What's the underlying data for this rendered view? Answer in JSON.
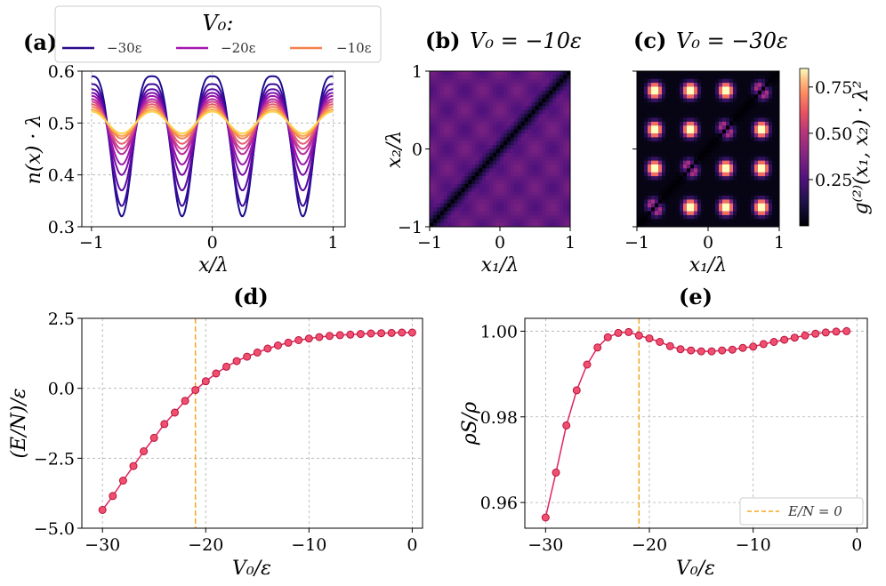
{
  "panels": {
    "a": {
      "label": "(a)",
      "ylabel": "n(x) · λ",
      "xlabel": "x/λ"
    },
    "b": {
      "label": "(b)",
      "title": "V₀ = −10ε",
      "xlabel": "x₁/λ",
      "ylabel": "x₂/λ"
    },
    "c": {
      "label": "(c)",
      "title": "V₀ = −30ε",
      "xlabel": "x₁/λ"
    },
    "d": {
      "label": "(d)",
      "xlabel": "V₀/ε",
      "ylabel": "(E/N)/ε"
    },
    "e": {
      "label": "(e)",
      "xlabel": "V₀/ε",
      "ylabel": "ρS/ρ"
    }
  },
  "legend_a": {
    "title": "V₀:",
    "entries": [
      "−30ε",
      "−20ε",
      "−10ε"
    ]
  },
  "legend_e": {
    "entries": [
      "E/N = 0"
    ]
  },
  "colorbar": {
    "label": "g⁽²⁾(x₁, x₂) · λ²",
    "ticks": [
      "0.25",
      "0.50",
      "0.75"
    ]
  },
  "colors": {
    "series": "#e0245e",
    "marker_fill": "#f0506e",
    "vline": "#f5a623",
    "cmap_low": "#000004",
    "cmap_high": "#fcfdbf"
  },
  "chart_data": [
    {
      "type": "line",
      "id": "a",
      "title": "",
      "xlabel": "x/λ",
      "ylabel": "n(x) · λ",
      "xlim": [
        -1.08,
        1.1
      ],
      "ylim": [
        0.3,
        0.6
      ],
      "xticks": [
        "−1",
        "0",
        "1"
      ],
      "yticks": [
        "0.3",
        "0.4",
        "0.5",
        "0.6"
      ],
      "grid": true,
      "description_series": "density profiles n(x)·λ = 0.5 + A·cos(4πx/λ), one curve per V₀ from −30ε (dark) to −10ε (light)",
      "series": [
        {
          "V0": -30,
          "amplitude": 0.09,
          "min_dip": 0.32,
          "label": "−30ε"
        },
        {
          "V0": -28,
          "amplitude": 0.075,
          "min_dip": 0.34
        },
        {
          "V0": -26,
          "amplitude": 0.065,
          "min_dip": 0.37
        },
        {
          "V0": -24,
          "amplitude": 0.058,
          "min_dip": 0.4
        },
        {
          "V0": -22,
          "amplitude": 0.052,
          "min_dip": 0.42
        },
        {
          "V0": -20,
          "amplitude": 0.046,
          "min_dip": 0.44,
          "label": "−20ε"
        },
        {
          "V0": -18,
          "amplitude": 0.041,
          "min_dip": 0.45
        },
        {
          "V0": -16,
          "amplitude": 0.036,
          "min_dip": 0.46
        },
        {
          "V0": -14,
          "amplitude": 0.031,
          "min_dip": 0.47
        },
        {
          "V0": -12,
          "amplitude": 0.026,
          "min_dip": 0.475
        },
        {
          "V0": -10,
          "amplitude": 0.022,
          "min_dip": 0.48,
          "label": "−10ε"
        }
      ]
    },
    {
      "type": "heatmap",
      "id": "b",
      "title": "V₀ = −10ε",
      "xlabel": "x₁/λ",
      "ylabel": "x₂/λ",
      "xlim": [
        -1,
        1
      ],
      "ylim": [
        -1,
        1
      ],
      "xticks": [
        "−1",
        "0",
        "1"
      ],
      "yticks": [
        "−1",
        "0",
        "1"
      ],
      "value_range": [
        0.0,
        0.85
      ],
      "background_level": 0.3,
      "modulation": 0.05,
      "diagonal_level": 0.0
    },
    {
      "type": "heatmap",
      "id": "c",
      "title": "V₀ = −30ε",
      "xlabel": "x₁/λ",
      "xlim": [
        -1,
        1
      ],
      "ylim": [
        -1,
        1
      ],
      "xticks": [
        "−1",
        "0",
        "1"
      ],
      "value_range": [
        0.0,
        0.85
      ],
      "blob_level": 0.85,
      "background_level": 0.03,
      "diagonal_level": 0.0
    },
    {
      "type": "line",
      "id": "d",
      "title": "",
      "xlabel": "V₀/ε",
      "ylabel": "(E/N)/ε",
      "xlim": [
        -32,
        1
      ],
      "ylim": [
        -5.0,
        2.5
      ],
      "xticks": [
        "−30",
        "−20",
        "−10",
        "0"
      ],
      "yticks": [
        "−5.0",
        "−2.5",
        "0.0",
        "2.5"
      ],
      "grid": true,
      "vline": -21,
      "x": [
        -30,
        -29,
        -28,
        -27,
        -26,
        -25,
        -24,
        -23,
        -22,
        -21,
        -20,
        -19,
        -18,
        -17,
        -16,
        -15,
        -14,
        -13,
        -12,
        -11,
        -10,
        -9,
        -8,
        -7,
        -6,
        -5,
        -4,
        -3,
        -2,
        -1,
        0
      ],
      "y": [
        -4.35,
        -3.85,
        -3.3,
        -2.78,
        -2.25,
        -1.77,
        -1.28,
        -0.87,
        -0.45,
        -0.06,
        0.25,
        0.53,
        0.77,
        0.97,
        1.13,
        1.28,
        1.42,
        1.53,
        1.63,
        1.72,
        1.78,
        1.83,
        1.87,
        1.9,
        1.92,
        1.94,
        1.96,
        1.97,
        1.98,
        1.99,
        1.99
      ]
    },
    {
      "type": "line",
      "id": "e",
      "title": "",
      "xlabel": "V₀/ε",
      "ylabel": "ρS/ρ",
      "xlim": [
        -32,
        1
      ],
      "ylim": [
        0.954,
        1.003
      ],
      "xticks": [
        "−30",
        "−20",
        "−10",
        "0"
      ],
      "yticks": [
        "0.96",
        "0.98",
        "1.00"
      ],
      "grid": true,
      "vline": -21,
      "legend": "E/N = 0",
      "x": [
        -30,
        -29,
        -28,
        -27,
        -26,
        -25,
        -24,
        -23,
        -22,
        -21,
        -20,
        -19,
        -18,
        -17,
        -16,
        -15,
        -14,
        -13,
        -12,
        -11,
        -10,
        -9,
        -8,
        -7,
        -6,
        -5,
        -4,
        -3,
        -2,
        -1
      ],
      "y": [
        0.9565,
        0.967,
        0.978,
        0.9862,
        0.9922,
        0.9962,
        0.9986,
        0.9996,
        0.9998,
        0.999,
        0.9983,
        0.9975,
        0.9965,
        0.9958,
        0.9955,
        0.9953,
        0.9953,
        0.9955,
        0.9957,
        0.9961,
        0.9964,
        0.997,
        0.9975,
        0.998,
        0.9985,
        0.999,
        0.9994,
        0.9997,
        0.9999,
        1.0
      ]
    }
  ]
}
